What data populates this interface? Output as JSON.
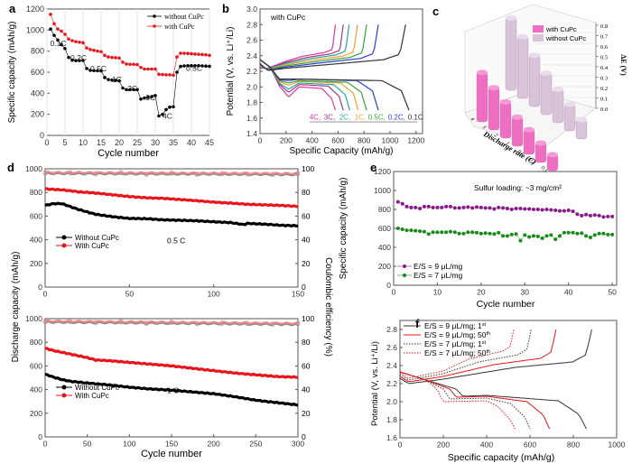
{
  "chart_data": [
    {
      "panel": "a",
      "type": "scatter",
      "xlabel": "Cycle number",
      "ylabel": "Specific capacity (mAh/g)",
      "xlim": [
        0,
        45
      ],
      "ylim": [
        0,
        1200
      ],
      "xticks": [
        0,
        5,
        10,
        15,
        20,
        25,
        30,
        35,
        40,
        45
      ],
      "yticks": [
        0,
        200,
        400,
        600,
        800,
        1000,
        1200
      ],
      "legend": "top-right",
      "series": [
        {
          "name": "without CuPc",
          "color": "#000000",
          "x": [
            1,
            2,
            3,
            4,
            5,
            6,
            7,
            8,
            9,
            10,
            11,
            12,
            13,
            14,
            15,
            16,
            17,
            18,
            19,
            20,
            21,
            22,
            23,
            24,
            25,
            26,
            27,
            28,
            29,
            30,
            31,
            32,
            33,
            34,
            35,
            36,
            37,
            38,
            39,
            40,
            41,
            42,
            43,
            44,
            45
          ],
          "values": [
            1010,
            950,
            905,
            862,
            825,
            740,
            715,
            710,
            710,
            712,
            635,
            618,
            615,
            614,
            612,
            550,
            530,
            525,
            522,
            518,
            450,
            435,
            435,
            435,
            435,
            345,
            355,
            362,
            368,
            378,
            185,
            200,
            245,
            268,
            272,
            600,
            655,
            660,
            662,
            662,
            662,
            662,
            660,
            658,
            656
          ]
        },
        {
          "name": "with CuPc",
          "color": "#e8161c",
          "x": [
            1,
            2,
            3,
            4,
            5,
            6,
            7,
            8,
            9,
            10,
            11,
            12,
            13,
            14,
            15,
            16,
            17,
            18,
            19,
            20,
            21,
            22,
            23,
            24,
            25,
            26,
            27,
            28,
            29,
            30,
            31,
            32,
            33,
            34,
            35,
            36,
            37,
            38,
            39,
            40,
            41,
            42,
            43,
            44,
            45
          ],
          "values": [
            1150,
            1060,
            1010,
            990,
            960,
            915,
            900,
            890,
            885,
            880,
            830,
            815,
            808,
            800,
            795,
            760,
            745,
            740,
            738,
            735,
            695,
            678,
            675,
            675,
            672,
            645,
            630,
            630,
            630,
            630,
            580,
            578,
            575,
            575,
            572,
            745,
            780,
            780,
            778,
            775,
            772,
            770,
            768,
            765,
            760
          ]
        }
      ],
      "annotations": [
        "0.1C",
        "0.2C",
        "0.5C",
        "1C",
        "2C",
        "3C",
        "4C",
        "0.5C"
      ]
    },
    {
      "panel": "b",
      "type": "line",
      "title": "with CuPc",
      "xlabel": "Specific Capacity (mAh/g)",
      "ylabel": "Potential (V, vs. Li⁺/Li)",
      "xlim": [
        0,
        1250
      ],
      "ylim": [
        1.4,
        3.0
      ],
      "xticks": [
        0,
        200,
        400,
        600,
        800,
        1000,
        1200
      ],
      "yticks": [
        1.4,
        1.6,
        1.8,
        2.0,
        2.2,
        2.4,
        2.6,
        2.8,
        3.0
      ],
      "series": [
        {
          "name": "4C",
          "color": "#e0359a",
          "discharge_end": 580,
          "charge_end": 580,
          "dip": 1.87,
          "plateau": 2.0
        },
        {
          "name": "3C",
          "color": "#9b3a8a",
          "discharge_end": 640,
          "charge_end": 640,
          "dip": 1.93,
          "plateau": 2.03
        },
        {
          "name": "2C",
          "color": "#2aa59a",
          "discharge_end": 690,
          "charge_end": 685,
          "dip": 1.97,
          "plateau": 2.05
        },
        {
          "name": "1C",
          "color": "#f0a030",
          "discharge_end": 755,
          "charge_end": 750,
          "dip": 2.02,
          "plateau": 2.07
        },
        {
          "name": "0.5C",
          "color": "#3aa040",
          "discharge_end": 820,
          "charge_end": 820,
          "dip": 2.05,
          "plateau": 2.08
        },
        {
          "name": "0.2C",
          "color": "#2b3fd0",
          "discharge_end": 910,
          "charge_end": 910,
          "dip": 2.08,
          "plateau": 2.1
        },
        {
          "name": "0.1C",
          "color": "#333333",
          "discharge_end": 1145,
          "charge_end": 1120,
          "dip": 2.1,
          "plateau": 2.1
        }
      ]
    },
    {
      "panel": "c",
      "type": "bar",
      "title": "",
      "xlabel": "Discharge rate (C)",
      "zlabel": "ΔE (V)",
      "zlim": [
        0,
        0.8
      ],
      "zticks": [
        "0.0",
        "0.1",
        "0.2",
        "0.3",
        "0.4",
        "0.5",
        "0.6",
        "0.7",
        "0.8"
      ],
      "categories": [
        "4",
        "3",
        "2",
        "1",
        "0.5",
        "0.2",
        "0.1"
      ],
      "series": [
        {
          "name": "with CuPc",
          "color": "#ee6fc2",
          "values": [
            0.56,
            0.48,
            0.41,
            0.33,
            0.28,
            0.22,
            0.18
          ]
        },
        {
          "name": "without CuPc",
          "color": "#d8c4d8",
          "values": [
            0.82,
            0.7,
            0.58,
            0.47,
            0.38,
            0.3,
            0.22
          ]
        }
      ]
    },
    {
      "panel": "d-top",
      "type": "scatter",
      "annotation": "0.5 C",
      "xlim": [
        0,
        150
      ],
      "ylim": [
        0,
        1000
      ],
      "y2lim": [
        0,
        100
      ],
      "xticks": [
        0,
        50,
        100,
        150
      ],
      "yticks": [
        0,
        200,
        400,
        600,
        800,
        1000
      ],
      "y2ticks": [
        0,
        20,
        40,
        60,
        80,
        100
      ],
      "series": [
        {
          "name": "Without CuPc",
          "color": "#000000",
          "x": [
            0,
            5,
            10,
            15,
            20,
            30,
            40,
            50,
            60,
            70,
            80,
            90,
            100,
            110,
            118,
            120,
            130,
            140,
            150
          ],
          "values": [
            690,
            705,
            705,
            680,
            655,
            615,
            595,
            580,
            578,
            568,
            565,
            560,
            552,
            545,
            528,
            538,
            532,
            522,
            518
          ]
        },
        {
          "name": "With CuPc",
          "color": "#e8161c",
          "x": [
            0,
            10,
            20,
            30,
            40,
            50,
            60,
            70,
            80,
            90,
            100,
            110,
            120,
            130,
            140,
            150
          ],
          "values": [
            830,
            822,
            805,
            795,
            780,
            765,
            755,
            750,
            740,
            730,
            718,
            710,
            700,
            695,
            690,
            682
          ]
        },
        {
          "name": "CE without CuPc",
          "color": "#888888",
          "axis": "right",
          "x": [
            0,
            150
          ],
          "values": [
            96,
            95
          ]
        },
        {
          "name": "CE with CuPc",
          "color": "#e88888",
          "axis": "right",
          "x": [
            0,
            150
          ],
          "values": [
            97,
            96
          ]
        }
      ]
    },
    {
      "panel": "d-bottom",
      "type": "scatter",
      "annotation": "1 C",
      "xlabel": "Cycle number",
      "ylabel": "Discharge capacity (mAh/g)",
      "y2label": "Coulombic efficiency (%)",
      "xlim": [
        0,
        300
      ],
      "ylim": [
        0,
        1000
      ],
      "y2lim": [
        0,
        100
      ],
      "xticks": [
        0,
        50,
        100,
        150,
        200,
        250,
        300
      ],
      "yticks": [
        0,
        200,
        400,
        600,
        800,
        1000
      ],
      "y2ticks": [
        0,
        20,
        40,
        60,
        80,
        100
      ],
      "series": [
        {
          "name": "Without CuPc",
          "color": "#000000",
          "x": [
            0,
            10,
            20,
            30,
            50,
            75,
            100,
            125,
            150,
            175,
            200,
            225,
            250,
            275,
            300
          ],
          "values": [
            530,
            505,
            485,
            470,
            455,
            440,
            420,
            405,
            395,
            380,
            365,
            340,
            310,
            290,
            270
          ]
        },
        {
          "name": "With CuPc",
          "color": "#e8161c",
          "x": [
            0,
            10,
            20,
            30,
            50,
            60,
            75,
            100,
            125,
            150,
            175,
            200,
            225,
            250,
            275,
            300
          ],
          "values": [
            750,
            730,
            715,
            700,
            670,
            650,
            645,
            630,
            615,
            600,
            580,
            560,
            540,
            525,
            510,
            505
          ]
        },
        {
          "name": "CE without CuPc",
          "color": "#888888",
          "axis": "right",
          "x": [
            0,
            300
          ],
          "values": [
            97,
            95
          ]
        },
        {
          "name": "CE with CuPc",
          "color": "#e88888",
          "axis": "right",
          "x": [
            0,
            300
          ],
          "values": [
            98,
            96
          ]
        }
      ]
    },
    {
      "panel": "e",
      "type": "scatter",
      "annotation": "Sulfur loading: ~3 mg/cm²",
      "xlabel": "Cycle number",
      "ylabel": "Specific capacity (mAh/g)",
      "xlim": [
        0,
        51
      ],
      "ylim": [
        0,
        1200
      ],
      "xticks": [
        0,
        10,
        20,
        30,
        40,
        50
      ],
      "yticks": [
        0,
        200,
        400,
        600,
        800,
        1000,
        1200
      ],
      "legend": "bottom-left",
      "series": [
        {
          "name": "E/S = 9 μL/mg",
          "color": "#8b1a8b",
          "values": [
            880,
            860,
            830,
            820,
            820,
            810,
            830,
            830,
            820,
            820,
            820,
            830,
            830,
            815,
            815,
            820,
            825,
            815,
            825,
            820,
            815,
            815,
            805,
            820,
            815,
            810,
            800,
            810,
            810,
            805,
            805,
            800,
            800,
            795,
            800,
            795,
            790,
            785,
            785,
            790,
            780,
            750,
            735,
            745,
            735,
            740,
            735,
            720,
            725,
            725
          ]
        },
        {
          "name": "E/S = 7 μL/mg",
          "color": "#1a8b1a",
          "values": [
            600,
            590,
            580,
            580,
            575,
            570,
            565,
            540,
            560,
            560,
            560,
            560,
            565,
            560,
            545,
            545,
            560,
            560,
            555,
            545,
            550,
            545,
            540,
            555,
            520,
            520,
            535,
            540,
            470,
            530,
            510,
            520,
            515,
            495,
            520,
            530,
            485,
            520,
            555,
            555,
            555,
            545,
            550,
            520,
            505,
            530,
            545,
            545,
            535,
            535
          ]
        }
      ]
    },
    {
      "panel": "f",
      "type": "line",
      "xlabel": "Specific capacity (mAh/g)",
      "ylabel": "Potential (V, vs. Li⁺/Li)",
      "xlim": [
        0,
        1000
      ],
      "ylim": [
        1.6,
        2.9
      ],
      "xticks": [
        0,
        200,
        400,
        600,
        800,
        1000
      ],
      "yticks": [
        1.6,
        1.8,
        2.0,
        2.2,
        2.4,
        2.6,
        2.8
      ],
      "legend": "top-left",
      "series": [
        {
          "name": "E/S = 9 μL/mg; 1st",
          "color": "#333333",
          "dash": "solid",
          "discharge_end": 860,
          "charge_end": 885
        },
        {
          "name": "E/S = 9 μL/mg; 50th",
          "color": "#e8161c",
          "dash": "solid",
          "discharge_end": 690,
          "charge_end": 720
        },
        {
          "name": "E/S = 7 μL/mg; 1st",
          "color": "#333333",
          "dash": "dotted",
          "discharge_end": 600,
          "charge_end": 605
        },
        {
          "name": "E/S = 7 μL/mg; 50th",
          "color": "#e8161c",
          "dash": "dotted",
          "discharge_end": 530,
          "charge_end": 525
        }
      ]
    }
  ],
  "panel_labels": [
    "a",
    "b",
    "c",
    "d",
    "e",
    "f"
  ],
  "legend_a": [
    "without CuPc",
    "with CuPc"
  ],
  "legend_d": [
    "Without CuPc",
    "With CuPc"
  ],
  "rate_labels_b": [
    "4C,",
    "3C,",
    "2C,",
    "1C,",
    "0.5C,",
    "0.2C,",
    "0.1C"
  ],
  "legend_f": [
    "E/S = 9 μL/mg; 1",
    "E/S = 9 μL/mg; 50",
    "E/S = 7 μL/mg; 1",
    "E/S = 7 μL/mg; 50"
  ],
  "legend_f_sup": [
    "st",
    "th",
    "st",
    "th"
  ]
}
